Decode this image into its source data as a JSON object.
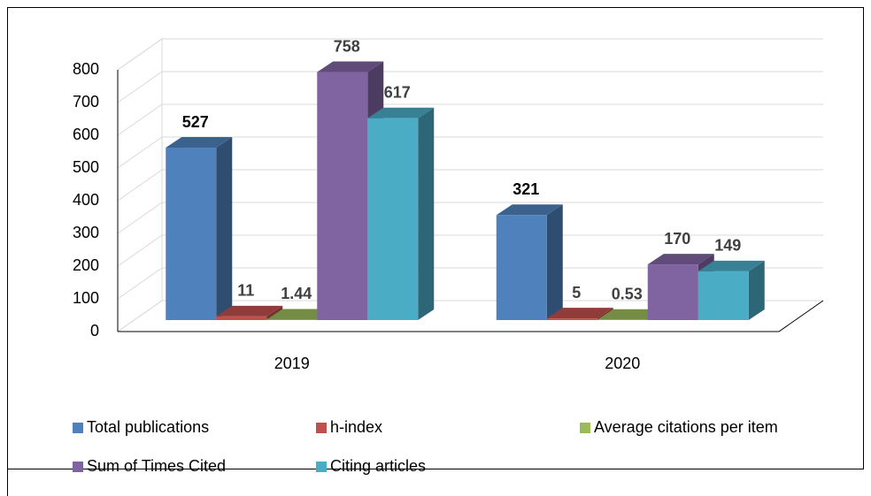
{
  "chart_data": {
    "type": "bar3d",
    "categories": [
      "2019",
      "2020"
    ],
    "series": [
      {
        "name": "Total publications",
        "color": "#4f81bd",
        "values": [
          527,
          321
        ]
      },
      {
        "name": "h-index",
        "color": "#c0504d",
        "values": [
          11,
          5
        ]
      },
      {
        "name": "Average citations per item",
        "color": "#9bbb59",
        "values": [
          1.44,
          0.53
        ]
      },
      {
        "name": "Sum of Times Cited",
        "color": "#8064a2",
        "values": [
          758,
          170
        ]
      },
      {
        "name": "Citing articles",
        "color": "#4bacc6",
        "values": [
          617,
          149
        ]
      }
    ],
    "ylim": [
      0,
      800
    ],
    "yticks": [
      0,
      100,
      200,
      300,
      400,
      500,
      600,
      700,
      800
    ],
    "grid": true,
    "legend": "bottom",
    "data_labels": true
  }
}
